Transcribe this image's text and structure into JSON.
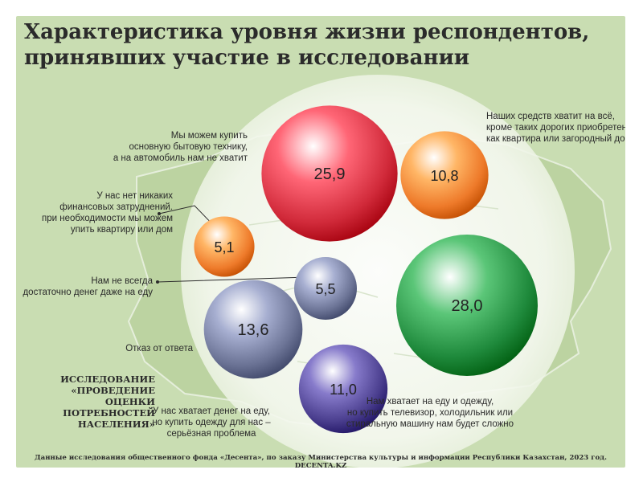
{
  "title_line1": "Характеристика уровня жизни респондентов,",
  "title_line2": "принявших участие в исследовании",
  "study": {
    "line1": "ИССЛЕДОВАНИЕ",
    "line2": "«ПРОВЕДЕНИЕ ОЦЕНКИ",
    "line3": "ПОТРЕБНОСТЕЙ",
    "line4": "НАСЕЛЕНИЯ»"
  },
  "source": "Данные исследования общественного фонда «Десента», по заказу Министерства культуры и информации Республики Казахстан, 2023 год. DECENTA.KZ",
  "colors": {
    "red": "#d12a3a",
    "orange": "#ee7a2a",
    "green": "#1f8a3c",
    "slate": "#6b7395",
    "purple": "#4b3f8f",
    "background": "#c9ddb2"
  },
  "chart_data": {
    "type": "bubble",
    "unit": "%",
    "series": [
      {
        "label_lines": [
          "Мы можем купить",
          "основную бытовую технику,",
          "а на автомобиль нам не хватит"
        ],
        "value": 25.9,
        "display": "25,9",
        "color": "red"
      },
      {
        "label_lines": [
          "Наших средств хватит на всё,",
          "кроме таких дорогих приобретений,",
          "как квартира или загородный дом"
        ],
        "value": 10.8,
        "display": "10,8",
        "color": "orange"
      },
      {
        "label_lines": [
          "У нас нет никаких",
          "финансовых затруднений.",
          "при необходимости мы можем",
          "упить квартиру или дом"
        ],
        "value": 5.1,
        "display": "5,1",
        "color": "orange"
      },
      {
        "label_lines": [
          "Нам не всегда",
          "достаточно денег даже на еду"
        ],
        "value": 5.5,
        "display": "5,5",
        "color": "slate"
      },
      {
        "label_lines": [
          "Нам хватает на еду и одежду,",
          "но купить телевизор, холодильник или",
          "стиральную машину нам будет сложно"
        ],
        "value": 28.0,
        "display": "28,0",
        "color": "green"
      },
      {
        "label_lines": [
          "Отказ от ответа"
        ],
        "value": 13.6,
        "display": "13,6",
        "color": "slate"
      },
      {
        "label_lines": [
          "У нас хватает денег на еду,",
          "но купить одежду для нас –",
          "серьёзная проблема"
        ],
        "value": 11.0,
        "display": "11,0",
        "color": "purple"
      }
    ]
  }
}
